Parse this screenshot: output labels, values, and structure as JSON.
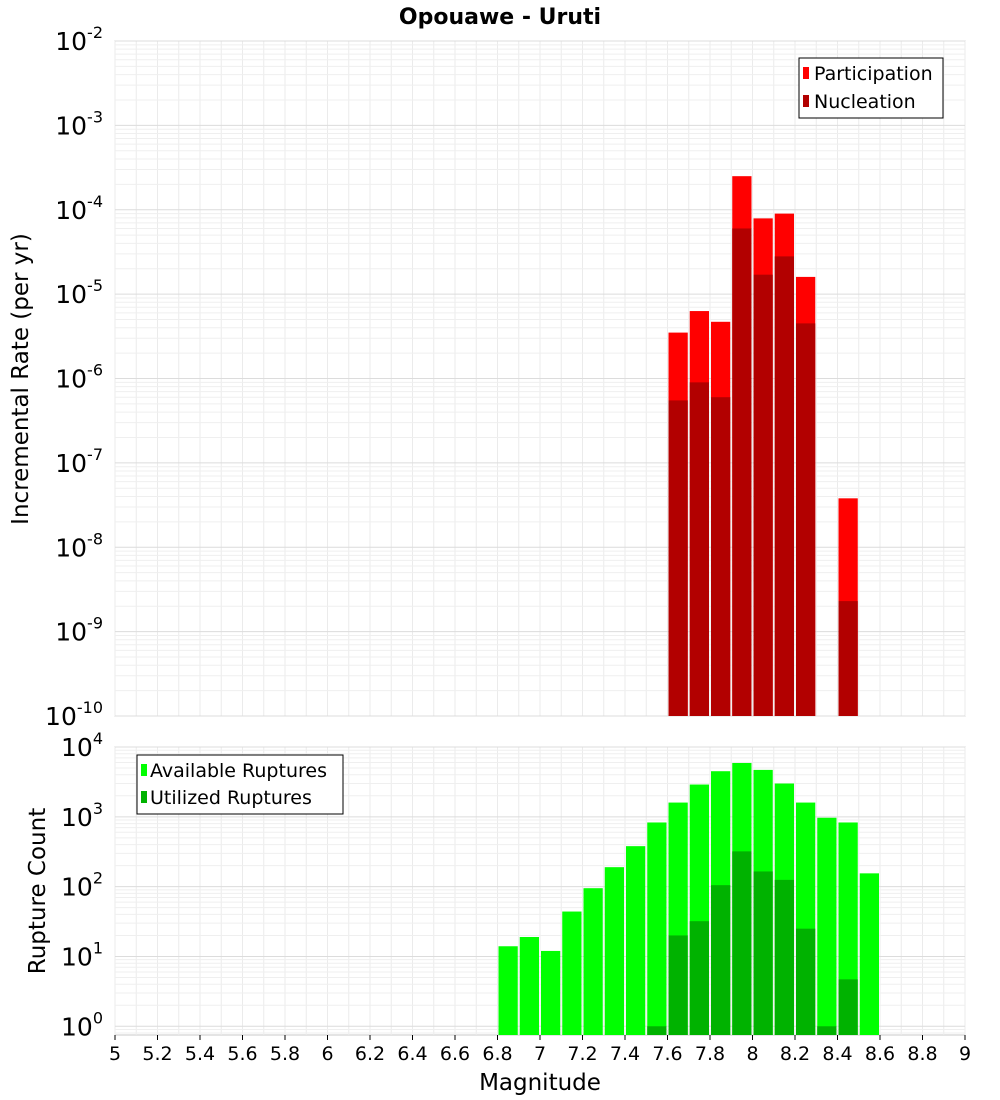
{
  "chart_data": [
    {
      "type": "bar",
      "title": "Opouawe - Uruti",
      "ylabel": "Incremental Rate (per yr)",
      "xlabel": "",
      "xlim": [
        5,
        9
      ],
      "y_scale": "log",
      "ylim": [
        1e-10,
        0.01
      ],
      "y_tick_exponents": [
        -10,
        -9,
        -8,
        -7,
        -6,
        -5,
        -4,
        -3,
        -2
      ],
      "grid": true,
      "legend_position": "top-right",
      "bin_width": 0.1,
      "series": [
        {
          "name": "Participation",
          "color": "#ff0000",
          "x": [
            7.65,
            7.75,
            7.85,
            7.95,
            8.05,
            8.15,
            8.25,
            8.45
          ],
          "values": [
            3.5e-06,
            6.3e-06,
            4.7e-06,
            0.00025,
            7.9e-05,
            9e-05,
            1.6e-05,
            3.8e-08
          ]
        },
        {
          "name": "Nucleation",
          "color": "#b20000",
          "x": [
            7.65,
            7.75,
            7.85,
            7.95,
            8.05,
            8.15,
            8.25,
            8.45
          ],
          "values": [
            5.5e-07,
            9e-07,
            6e-07,
            6e-05,
            1.7e-05,
            2.8e-05,
            4.5e-06,
            2.3e-09
          ]
        }
      ]
    },
    {
      "type": "bar",
      "title": "",
      "ylabel": "Rupture Count",
      "xlabel": "Magnitude",
      "xlim": [
        5,
        9
      ],
      "x_ticks": [
        "5",
        "5.2",
        "5.4",
        "5.6",
        "5.8",
        "6",
        "6.2",
        "6.4",
        "6.6",
        "6.8",
        "7",
        "7.2",
        "7.4",
        "7.6",
        "7.8",
        "8",
        "8.2",
        "8.4",
        "8.6",
        "8.8",
        "9"
      ],
      "y_scale": "log",
      "ylim": [
        0.75,
        10000.0
      ],
      "y_tick_exponents": [
        0,
        1,
        2,
        3,
        4
      ],
      "grid": true,
      "legend_position": "top-left",
      "bin_width": 0.1,
      "series": [
        {
          "name": "Available Ruptures",
          "color": "#00ff00",
          "x": [
            6.85,
            6.95,
            7.05,
            7.15,
            7.25,
            7.35,
            7.45,
            7.55,
            7.65,
            7.75,
            7.85,
            7.95,
            8.05,
            8.15,
            8.25,
            8.35,
            8.45,
            8.55
          ],
          "values": [
            14,
            19,
            12,
            44,
            95,
            190,
            380,
            830,
            1600,
            2900,
            4500,
            5900,
            4700,
            3000,
            1600,
            970,
            830,
            155
          ]
        },
        {
          "name": "Utilized Ruptures",
          "color": "#00b200",
          "x": [
            7.55,
            7.65,
            7.75,
            7.85,
            7.95,
            8.05,
            8.15,
            8.25,
            8.35,
            8.45
          ],
          "values": [
            1,
            20,
            32,
            105,
            320,
            165,
            125,
            25,
            1,
            4.7
          ]
        }
      ]
    }
  ]
}
